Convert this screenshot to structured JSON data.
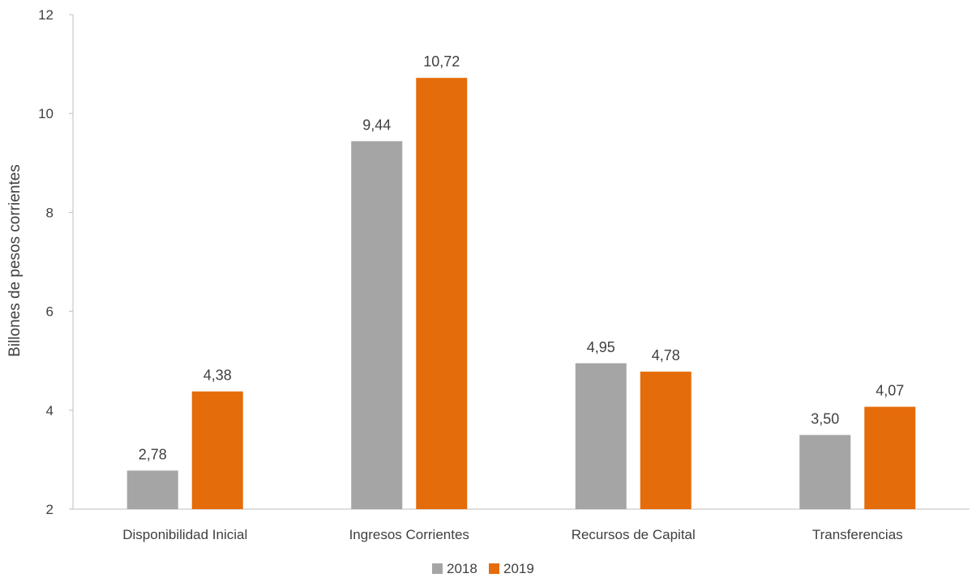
{
  "chart_data": {
    "type": "bar",
    "title": "",
    "xlabel": "",
    "ylabel": "Billones de pesos corrientes",
    "ylim": [
      2,
      12
    ],
    "yticks": [
      2,
      4,
      6,
      8,
      10,
      12
    ],
    "grid": false,
    "legend_position": "bottom-center",
    "categories": [
      "Disponibilidad Inicial",
      "Ingresos Corrientes",
      "Recursos de Capital",
      "Transferencias"
    ],
    "series": [
      {
        "name": "2018",
        "color": "#a5a5a5",
        "values": [
          2.78,
          9.44,
          4.95,
          3.5
        ],
        "labels": [
          "2,78",
          "9,44",
          "4,95",
          "3,50"
        ]
      },
      {
        "name": "2019",
        "color": "#e46c0a",
        "values": [
          4.38,
          10.72,
          4.78,
          4.07
        ],
        "labels": [
          "4,38",
          "10,72",
          "4,78",
          "4,07"
        ]
      }
    ]
  }
}
